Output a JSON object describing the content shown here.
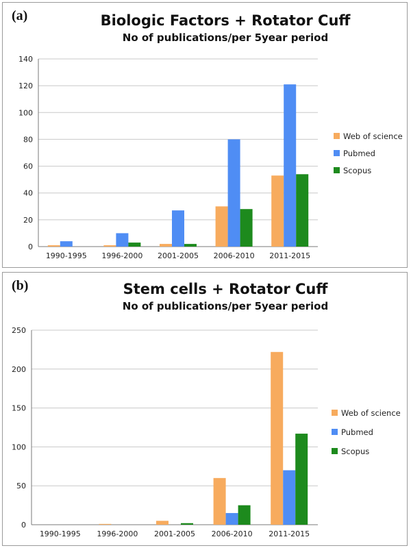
{
  "colors": {
    "web_of_science": "#f7ab5e",
    "pubmed": "#4f8df4",
    "scopus": "#1d8a1d",
    "gridline": "#c8c8c8",
    "axis": "#7a7a7a"
  },
  "panels": [
    {
      "label": "(a)",
      "title": "Biologic Factors + Rotator Cuff",
      "subtitle": "No of publications/per 5year period"
    },
    {
      "label": "(b)",
      "title": "Stem cells + Rotator Cuff",
      "subtitle": "No of publications/per 5year period"
    }
  ],
  "chart_data": [
    {
      "type": "bar",
      "title": "Biologic Factors + Rotator Cuff",
      "subtitle": "No of publications/per 5year period",
      "categories": [
        "1990-1995",
        "1996-2000",
        "2001-2005",
        "2006-2010",
        "2011-2015"
      ],
      "series": [
        {
          "name": "Web of science",
          "values": [
            1,
            1,
            2,
            30,
            53
          ]
        },
        {
          "name": "Pubmed",
          "values": [
            4,
            10,
            27,
            80,
            121
          ]
        },
        {
          "name": "Scopus",
          "values": [
            0,
            3,
            2,
            28,
            54
          ]
        }
      ],
      "ylim": [
        0,
        140
      ],
      "yticks": [
        0,
        20,
        40,
        60,
        80,
        100,
        120,
        140
      ],
      "grid": true,
      "legend": "right"
    },
    {
      "type": "bar",
      "title": "Stem cells + Rotator Cuff",
      "subtitle": "No of publications/per 5year period",
      "categories": [
        "1990-1995",
        "1996-2000",
        "2001-2005",
        "2006-2010",
        "2011-2015"
      ],
      "series": [
        {
          "name": "Web of science",
          "values": [
            0,
            1,
            5,
            60,
            222
          ]
        },
        {
          "name": "Pubmed",
          "values": [
            0,
            0,
            0,
            15,
            70
          ]
        },
        {
          "name": "Scopus",
          "values": [
            0,
            0,
            2,
            25,
            117
          ]
        }
      ],
      "ylim": [
        0,
        250
      ],
      "yticks": [
        0,
        50,
        100,
        150,
        200,
        250
      ],
      "grid": true,
      "legend": "right"
    }
  ]
}
